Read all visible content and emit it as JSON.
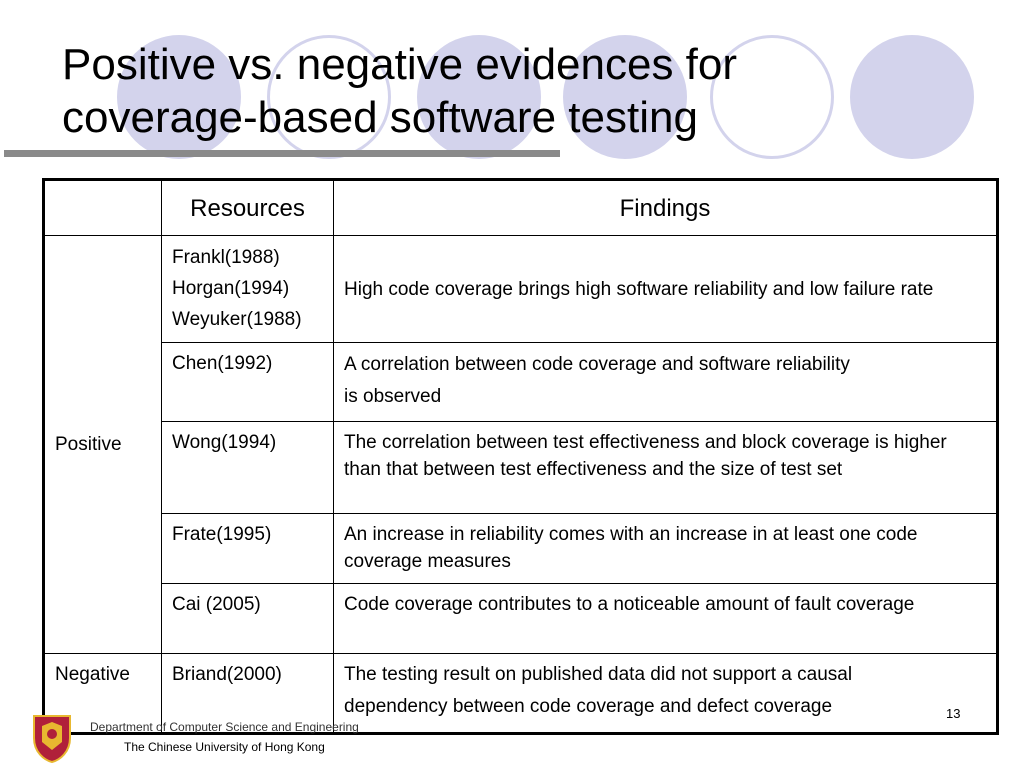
{
  "slide": {
    "title_line1": "Positive vs. negative evidences for",
    "title_line2": "coverage-based software testing",
    "slide_number": "13"
  },
  "table": {
    "headers": {
      "blank": "",
      "resources": "Resources",
      "findings": "Findings"
    },
    "groups": {
      "positive": "Positive",
      "negative": "Negative"
    },
    "rows": [
      {
        "resources": [
          "Frankl(1988)",
          "Horgan(1994)",
          "Weyuker(1988)"
        ],
        "finding": "High code coverage brings high software reliability and low failure rate"
      },
      {
        "resources": [
          "Chen(1992)"
        ],
        "finding": [
          "A correlation between code coverage and software reliability",
          "is observed"
        ]
      },
      {
        "resources": [
          "Wong(1994)"
        ],
        "finding": "The correlation between test effectiveness and block coverage is higher than that between test effectiveness and the size of test set"
      },
      {
        "resources": [
          "Frate(1995)"
        ],
        "finding": "An increase in reliability comes with an increase in at least one code coverage measures"
      },
      {
        "resources": [
          "Cai (2005)"
        ],
        "finding": "Code coverage contributes to a noticeable amount of fault coverage"
      },
      {
        "resources": [
          "Briand(2000)"
        ],
        "finding": [
          "The testing result on published data did not support a causal",
          "dependency between code coverage and defect coverage"
        ]
      }
    ]
  },
  "footer": {
    "department": "Department of Computer Science and Engineering",
    "university": "The Chinese University of Hong Kong"
  },
  "colors": {
    "circle": "#d3d3ec",
    "rule": "#8a8a8a",
    "logo_red": "#b0203a",
    "logo_gold": "#e8b830"
  }
}
